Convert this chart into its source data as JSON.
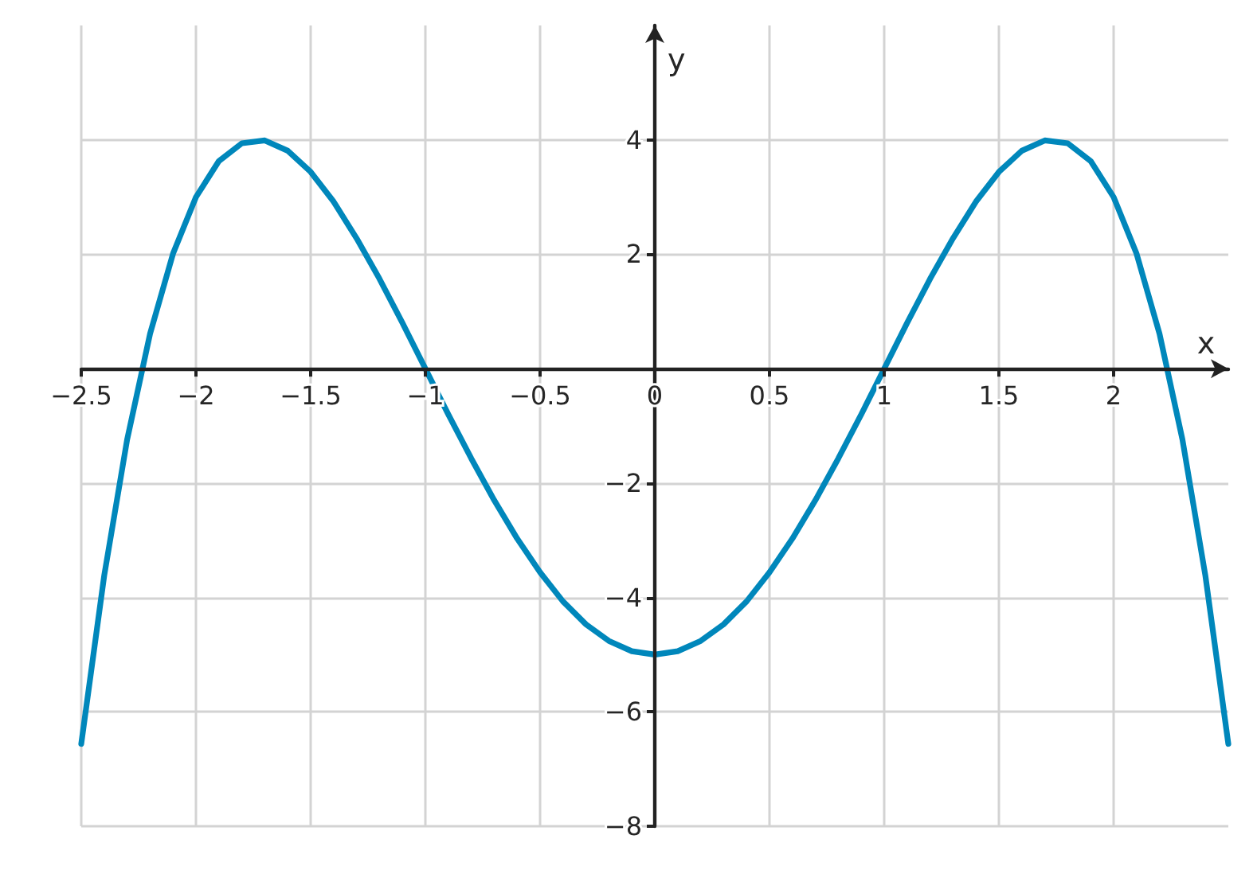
{
  "chart_data": {
    "type": "line",
    "xlabel": "x",
    "ylabel": "y",
    "x": [
      -2.5,
      -2.4,
      -2.3,
      -2.2,
      -2.1,
      -2.0,
      -1.9,
      -1.8,
      -1.7,
      -1.6,
      -1.5,
      -1.4,
      -1.3,
      -1.2,
      -1.1,
      -1.0,
      -0.9,
      -0.8,
      -0.7,
      -0.6,
      -0.5,
      -0.4,
      -0.3,
      -0.2,
      -0.1,
      0,
      0.1,
      0.2,
      0.3,
      0.4,
      0.5,
      0.6,
      0.7,
      0.8,
      0.9,
      1.0,
      1.1,
      1.2,
      1.3,
      1.4,
      1.5,
      1.6,
      1.7,
      1.8,
      1.9,
      2.0,
      2.1,
      2.2,
      2.3,
      2.4,
      2.5
    ],
    "values": [
      -6.56,
      -3.62,
      -1.24,
      0.61,
      2.01,
      3.0,
      3.63,
      3.94,
      3.99,
      3.81,
      3.44,
      2.92,
      2.28,
      1.57,
      0.8,
      0,
      -0.8,
      -1.57,
      -2.3,
      -2.97,
      -3.56,
      -4.07,
      -4.47,
      -4.76,
      -4.94,
      -5,
      -4.94,
      -4.76,
      -4.47,
      -4.07,
      -3.56,
      -2.97,
      -2.3,
      -1.57,
      -0.8,
      0,
      0.8,
      1.57,
      2.28,
      2.92,
      3.44,
      3.81,
      3.99,
      3.94,
      3.63,
      3.0,
      2.01,
      0.61,
      -1.24,
      -3.62,
      -6.56
    ],
    "color": "#0087bb",
    "xlim": [
      -2.5,
      2.5
    ],
    "xticks": [
      {
        "value": -2.5,
        "label": "−2.5"
      },
      {
        "value": -2,
        "label": "−2"
      },
      {
        "value": -1.5,
        "label": "−1.5"
      },
      {
        "value": -1,
        "label": "−1"
      },
      {
        "value": -0.5,
        "label": "−0.5"
      },
      0,
      0.5,
      1,
      1.5,
      2
    ],
    "ylim": [
      -8,
      6
    ],
    "yticks": [
      {
        "value": -8,
        "label": "−8"
      },
      {
        "value": -6,
        "label": "−6"
      },
      {
        "value": -4,
        "label": "−4"
      },
      {
        "value": -2,
        "label": "−2"
      },
      {
        "value": 0,
        "label": null
      },
      2,
      4
    ],
    "grid": true,
    "marker": "none",
    "line_style": "solid"
  }
}
